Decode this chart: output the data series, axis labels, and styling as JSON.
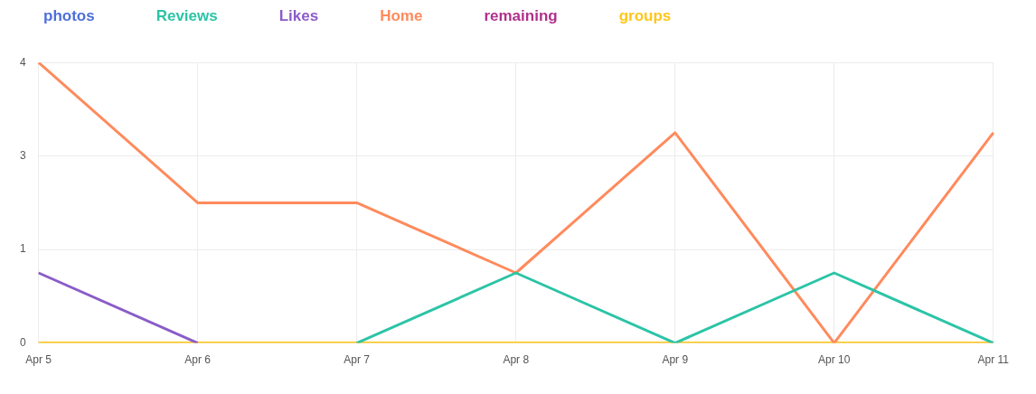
{
  "chart_data": {
    "type": "line",
    "categories": [
      "Apr 5",
      "Apr 6",
      "Apr 7",
      "Apr 8",
      "Apr 9",
      "Apr 10",
      "Apr 11"
    ],
    "ylim": [
      0,
      4
    ],
    "yticks": [
      0,
      {
        "value": 1.333,
        "label": "1"
      },
      {
        "value": 2.667,
        "label": "3"
      },
      4
    ],
    "grid": true,
    "legend": "top left",
    "marker": "none",
    "series": [
      {
        "name": "photos",
        "color": "#4f6fd8",
        "values": [
          null,
          null,
          null,
          null,
          null,
          null,
          null
        ]
      },
      {
        "name": "Reviews",
        "color": "#2bc4a6",
        "values": [
          null,
          null,
          0,
          1,
          0,
          1,
          0
        ]
      },
      {
        "name": "Likes",
        "color": "#8a5cc8",
        "values": [
          1,
          0,
          null,
          null,
          null,
          null,
          null
        ]
      },
      {
        "name": "Home",
        "color": "#ff8a5c",
        "values": [
          4,
          2,
          2,
          1,
          3,
          0,
          3
        ]
      },
      {
        "name": "remaining",
        "color": "#b0308c",
        "values": [
          null,
          null,
          null,
          null,
          null,
          null,
          null
        ]
      },
      {
        "name": "groups",
        "color": "#ffc61a",
        "values": [
          0,
          0,
          0,
          0,
          0,
          0,
          0
        ]
      }
    ]
  }
}
